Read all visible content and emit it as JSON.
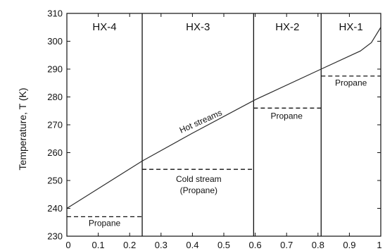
{
  "chart_data": {
    "type": "line",
    "title": "",
    "xlabel": "",
    "ylabel": "Temperature, T (K)",
    "xlim": [
      0,
      1
    ],
    "ylim": [
      230,
      310
    ],
    "x_ticks": [
      "0",
      "0.1",
      "0.2",
      "0.3",
      "0.4",
      "0.5",
      "0.6",
      "0.7",
      "0.8",
      "0.9",
      "1"
    ],
    "y_ticks": [
      "230",
      "240",
      "250",
      "260",
      "270",
      "280",
      "290",
      "300",
      "310"
    ],
    "grid": false,
    "series": [
      {
        "name": "Hot streams",
        "style": "solid",
        "x": [
          0,
          0.24,
          0.4,
          0.6,
          0.81,
          0.935,
          0.97,
          1.0
        ],
        "y": [
          240,
          257,
          267,
          279,
          290,
          296.5,
          299.5,
          305
        ]
      }
    ],
    "cold_streams": [
      {
        "x_start": 0,
        "x_end": 0.24,
        "y": 237,
        "label": "Propane"
      },
      {
        "x_start": 0.24,
        "x_end": 0.595,
        "y": 254,
        "label": "Cold stream (Propane)"
      },
      {
        "x_start": 0.595,
        "x_end": 0.81,
        "y": 276,
        "label": "Propane"
      },
      {
        "x_start": 0.81,
        "x_end": 1.0,
        "y": 287.5,
        "label": "Propane"
      }
    ],
    "dividers_x": [
      0.24,
      0.595,
      0.81
    ],
    "regions": [
      {
        "label": "HX-4",
        "x_start": 0,
        "x_end": 0.24
      },
      {
        "label": "HX-3",
        "x_start": 0.24,
        "x_end": 0.595
      },
      {
        "label": "HX-2",
        "x_start": 0.595,
        "x_end": 0.81
      },
      {
        "label": "HX-1",
        "x_start": 0.81,
        "x_end": 1.0
      }
    ],
    "annotations": [
      {
        "text": "Hot streams",
        "x": 0.43,
        "y": 270.3,
        "rotation_deg": -24
      },
      {
        "text": "Propane",
        "x": 0.12,
        "y": 233.7
      },
      {
        "text": "Cold stream",
        "x": 0.42,
        "y": 249.5
      },
      {
        "text": "(Propane)",
        "x": 0.42,
        "y": 245.4
      },
      {
        "text": "Propane",
        "x": 0.7,
        "y": 272.1
      },
      {
        "text": "Propane",
        "x": 0.905,
        "y": 284.0
      }
    ],
    "colors": {
      "line": "#2b2b2b",
      "axes": "#111111",
      "background": "#ffffff"
    }
  }
}
